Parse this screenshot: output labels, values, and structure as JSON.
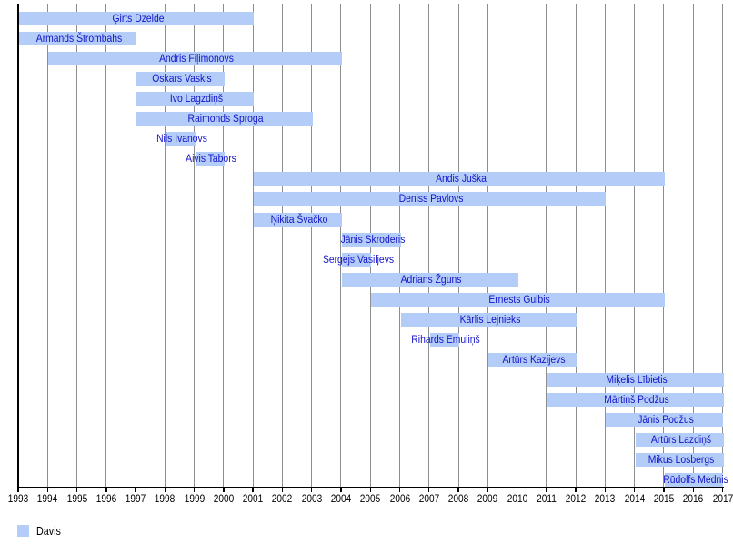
{
  "chart_data": {
    "type": "bar",
    "subtype": "gantt-timeline",
    "title": "",
    "xlabel": "",
    "ylabel": "",
    "x_axis": {
      "min": 1993,
      "max": 2017,
      "tick_interval": 1,
      "tick_labels": [
        "1993",
        "1994",
        "1995",
        "1996",
        "1997",
        "1998",
        "1999",
        "2000",
        "2001",
        "2002",
        "2003",
        "2004",
        "2005",
        "2006",
        "2007",
        "2008",
        "2009",
        "2010",
        "2011",
        "2012",
        "2013",
        "2014",
        "2015",
        "2016",
        "2017"
      ]
    },
    "grid": true,
    "bars": [
      {
        "label": "Ģirts Dzelde",
        "start": 1993,
        "end": 2001
      },
      {
        "label": "Armands Štrombahs",
        "start": 1993,
        "end": 1997
      },
      {
        "label": "Andris Fiļimonovs",
        "start": 1994,
        "end": 2004
      },
      {
        "label": "Oskars Vaskis",
        "start": 1997,
        "end": 2000
      },
      {
        "label": "Ivo Lagzdiņš",
        "start": 1997,
        "end": 2001
      },
      {
        "label": "Raimonds Sproga",
        "start": 1997,
        "end": 2003
      },
      {
        "label": "Nils Ivanovs",
        "start": 1998,
        "end": 1999
      },
      {
        "label": "Aivis Tabors",
        "start": 1999,
        "end": 2000
      },
      {
        "label": "Andis Juška",
        "start": 2001,
        "end": 2015
      },
      {
        "label": "Deniss Pavlovs",
        "start": 2001,
        "end": 2013
      },
      {
        "label": "Ņikita Švačko",
        "start": 2001,
        "end": 2004
      },
      {
        "label": "Jānis Skroderis",
        "start": 2004,
        "end": 2006
      },
      {
        "label": "Sergejs Vasiljevs",
        "start": 2004,
        "end": 2005
      },
      {
        "label": "Adrians Žguns",
        "start": 2004,
        "end": 2010
      },
      {
        "label": "Ernests Gulbis",
        "start": 2005,
        "end": 2015
      },
      {
        "label": "Kārlis Lejnieks",
        "start": 2006,
        "end": 2012
      },
      {
        "label": "Rihards Emuliņš",
        "start": 2007,
        "end": 2008
      },
      {
        "label": "Artūrs Kazijevs",
        "start": 2009,
        "end": 2012
      },
      {
        "label": "Miķelis Lībietis",
        "start": 2011,
        "end": 2017
      },
      {
        "label": "Mārtiņš Podžus",
        "start": 2011,
        "end": 2017
      },
      {
        "label": "Jānis Podžus",
        "start": 2013,
        "end": 2017
      },
      {
        "label": "Artūrs Lazdiņš",
        "start": 2014,
        "end": 2017
      },
      {
        "label": "Mikus Losbergs",
        "start": 2014,
        "end": 2017
      },
      {
        "label": "Rūdolfs Mednis",
        "start": 2015,
        "end": 2017
      }
    ],
    "legend": [
      {
        "label": "Davis",
        "color": "#b3ccf8"
      }
    ],
    "legend_position": "bottom-left",
    "colors": {
      "bar_fill": "#b3ccf8",
      "bar_label": "#1414c8",
      "gridline": "#8e8e8e",
      "axis": "#000000",
      "tick_label": "#000000",
      "background": "#ffffff"
    }
  }
}
